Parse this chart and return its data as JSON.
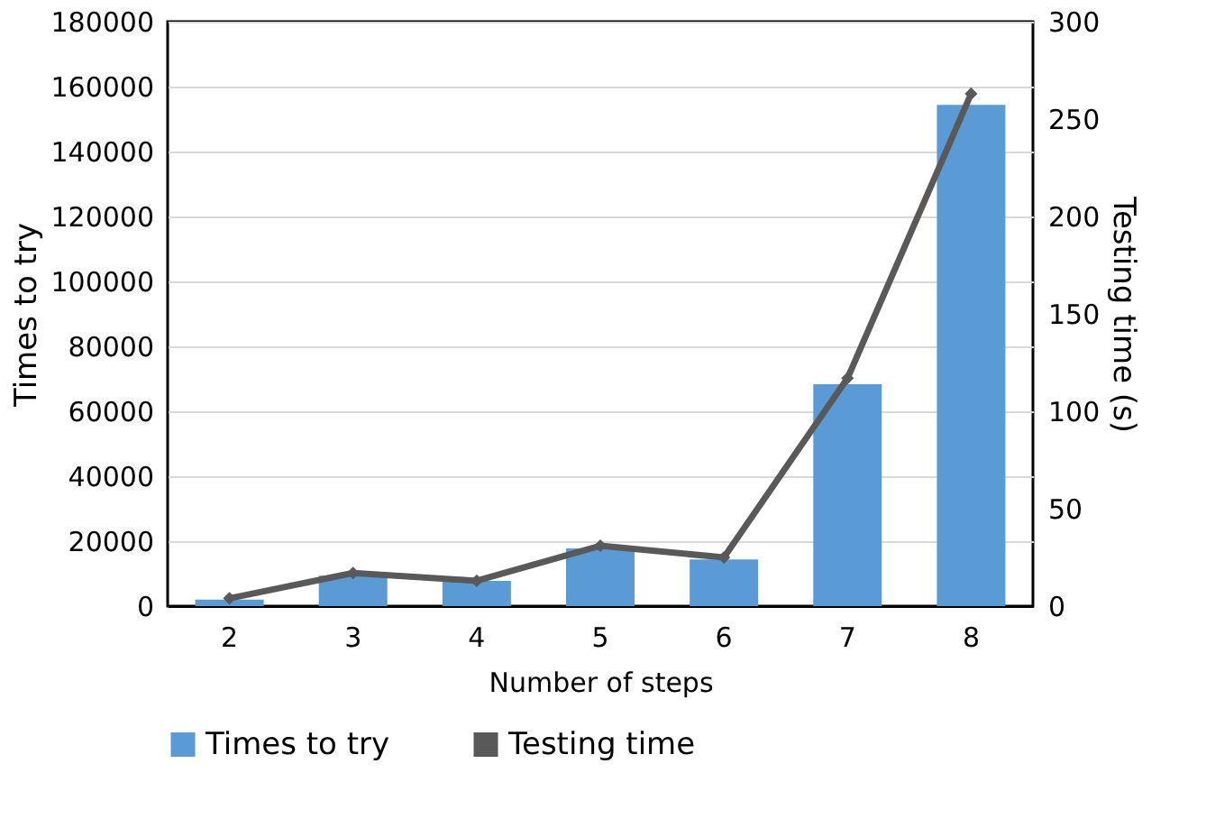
{
  "chart_data": {
    "type": "bar",
    "xlabel": "Number of steps",
    "ylabel": "Times to try",
    "y2label": "Testing time (s)",
    "categories": [
      "2",
      "3",
      "4",
      "5",
      "6",
      "7",
      "8"
    ],
    "series": [
      {
        "name": "Times to try",
        "color": "#5b9bd5",
        "values": [
          2000,
          9400,
          7800,
          17800,
          14400,
          68300,
          154400
        ]
      },
      {
        "name": "Testing time",
        "type": "line",
        "axis": "y2",
        "color": "#595959",
        "marker": "diamond",
        "values": [
          4,
          17,
          13,
          31,
          25,
          117,
          263
        ]
      }
    ],
    "ylim": [
      0,
      180000
    ],
    "yticks": [
      0,
      20000,
      40000,
      60000,
      80000,
      100000,
      120000,
      140000,
      160000,
      180000
    ],
    "y2lim": [
      0,
      300
    ],
    "y2ticks": [
      0,
      50,
      100,
      150,
      200,
      250,
      300
    ],
    "grid": "y",
    "legend": "bottom"
  }
}
